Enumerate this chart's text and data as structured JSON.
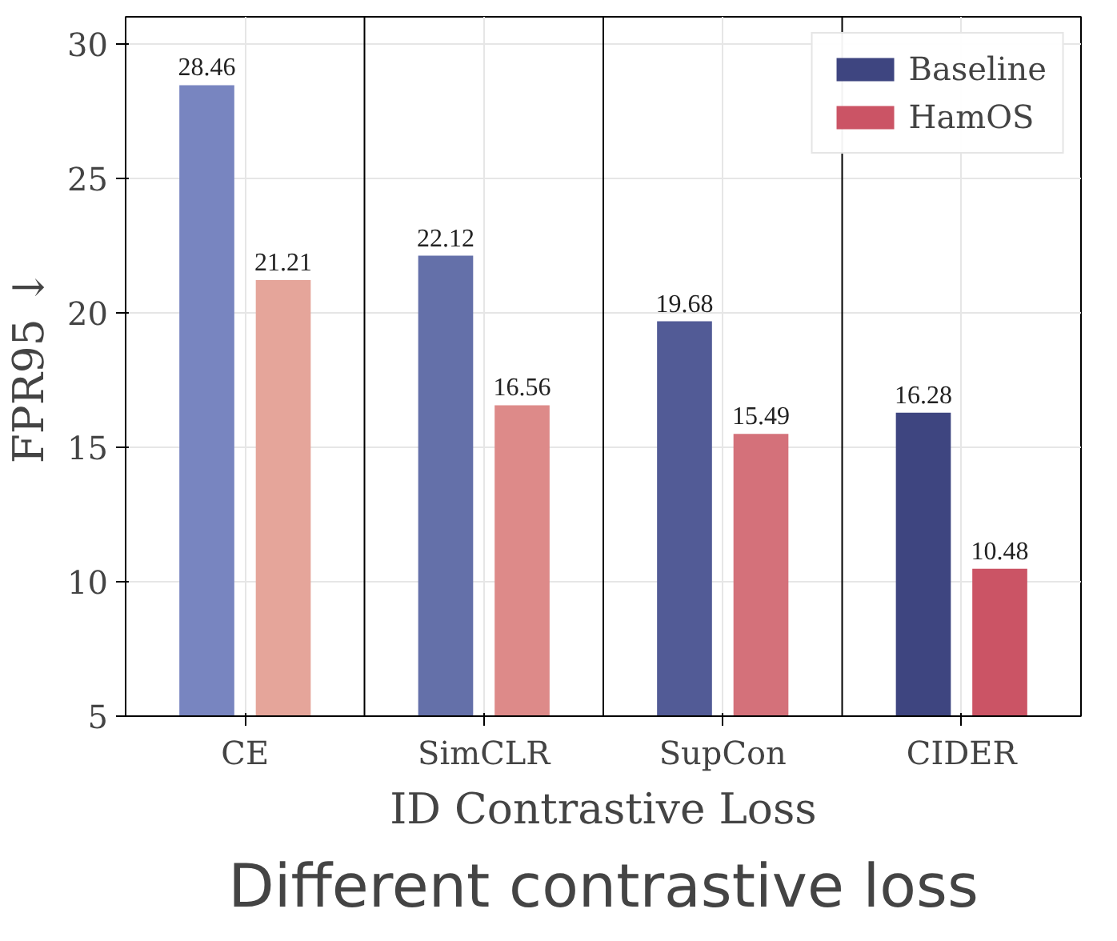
{
  "chart_data": {
    "type": "bar",
    "title": "Different contrastive loss",
    "xlabel": "ID Contrastive Loss",
    "ylabel": "FPR95 ↓",
    "categories": [
      "CE",
      "SimCLR",
      "SupCon",
      "CIDER"
    ],
    "series": [
      {
        "name": "Baseline",
        "color": "#3e4580",
        "colors": [
          "#7885c0",
          "#6470a9",
          "#525b96",
          "#3e4580"
        ],
        "values": [
          28.46,
          22.12,
          19.68,
          16.28
        ]
      },
      {
        "name": "HamOS",
        "color": "#cb5465",
        "colors": [
          "#e5a59a",
          "#dd8a89",
          "#d4717a",
          "#cb5465"
        ],
        "values": [
          21.21,
          16.56,
          15.49,
          10.48
        ]
      }
    ],
    "ylim": [
      5,
      31
    ],
    "yticks": [
      5,
      10,
      15,
      20,
      25,
      30
    ],
    "data_labels": true,
    "grid": true,
    "legend": "top right"
  }
}
